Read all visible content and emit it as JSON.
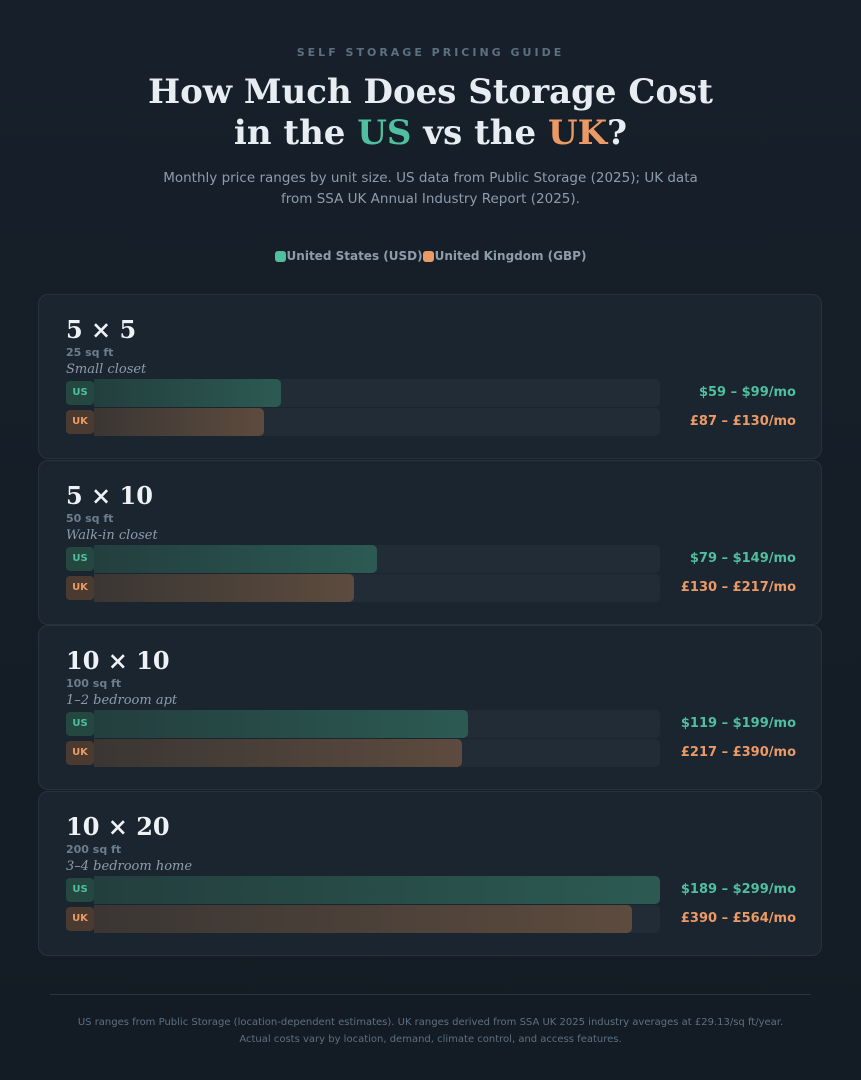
{
  "header": {
    "eyebrow": "SELF STORAGE PRICING GUIDE",
    "title_line1": "How Much Does Storage Cost",
    "title_in_the": "in the ",
    "title_us": "US",
    "title_vs_the": " vs the ",
    "title_uk": "UK",
    "title_q": "?",
    "subtitle": "Monthly price ranges by unit size. US data from Public Storage (2025); UK data from SSA UK Annual Industry Report (2025)."
  },
  "legend": {
    "us": "United States (USD)",
    "uk": "United Kingdom (GBP)"
  },
  "colors": {
    "us_accent": "#4fbf9f",
    "uk_accent": "#eb9a66",
    "background": "#17202a",
    "card": "#1b2530"
  },
  "badges": {
    "us": "US",
    "uk": "UK"
  },
  "chart_data": {
    "type": "bar",
    "categories": [
      "5 × 5",
      "5 × 10",
      "10 × 10",
      "10 × 20"
    ],
    "series": [
      {
        "name": "United States (USD)",
        "values": [
          99,
          149,
          199,
          299
        ],
        "ranges": [
          "$59 – $99/mo",
          "$79 – $149/mo",
          "$119 – $199/mo",
          "$189 – $299/mo"
        ]
      },
      {
        "name": "United Kingdom (GBP)",
        "values": [
          130,
          217,
          390,
          564
        ],
        "ranges": [
          "£87 – £130/mo",
          "£130 – £217/mo",
          "£217 – £390/mo",
          "£390 – £564/mo"
        ]
      }
    ],
    "units": [
      {
        "size": "5 × 5",
        "sqft": "25 sq ft",
        "desc": "Small closet",
        "us_fill": 0.33,
        "uk_fill": 0.3
      },
      {
        "size": "5 × 10",
        "sqft": "50 sq ft",
        "desc": "Walk-in closet",
        "us_fill": 0.5,
        "uk_fill": 0.46
      },
      {
        "size": "10 × 10",
        "sqft": "100 sq ft",
        "desc": "1–2 bedroom apt",
        "us_fill": 0.66,
        "uk_fill": 0.65
      },
      {
        "size": "10 × 20",
        "sqft": "200 sq ft",
        "desc": "3–4 bedroom home",
        "us_fill": 1.0,
        "uk_fill": 0.95
      }
    ]
  },
  "footer": {
    "line1": "US ranges from Public Storage (location-dependent estimates). UK ranges derived from SSA UK 2025 industry averages at £29.13/sq ft/year.",
    "line2": "Actual costs vary by location, demand, climate control, and access features."
  }
}
